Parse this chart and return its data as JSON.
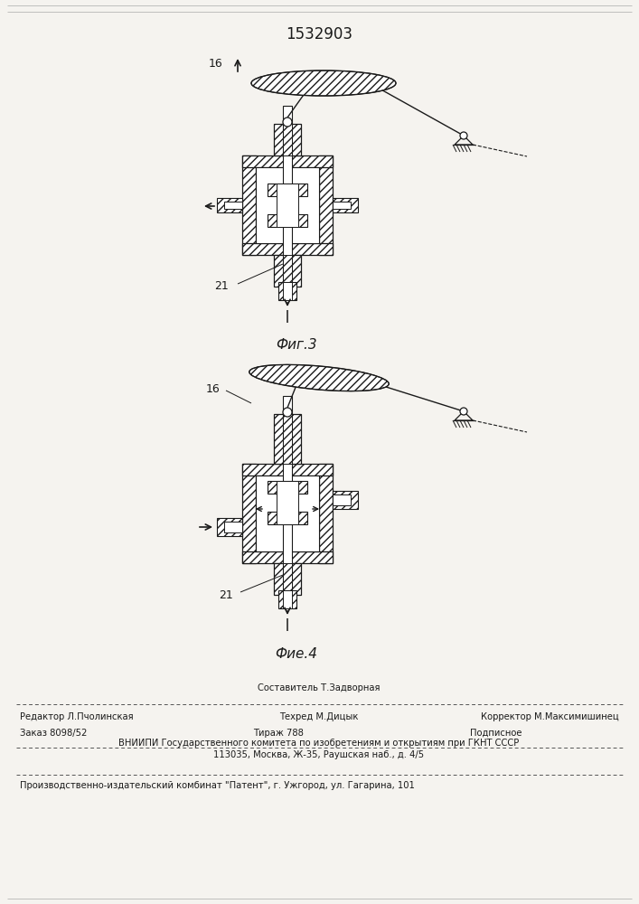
{
  "patent_number": "1532903",
  "background_color": "#f5f3ef",
  "fig3_label": "Фиг.3",
  "fig4_label": "Фие.4",
  "footer_line1_left": "Редактор Л.Пчолинская",
  "footer_line1_center_top": "Составитель Т.Задворная",
  "footer_line1_center": "Техред М.Дицык",
  "footer_line1_right": "Корректор М.Максимишинец",
  "footer_line2_left": "Заказ 8098/52",
  "footer_line2_center": "Тираж 788",
  "footer_line2_right": "Подписное",
  "footer_line3": "ВНИИПИ Государственного комитета по изобретениям и открытиям при ГКНТ СССР",
  "footer_line4": "113035, Москва, Ж-35, Раушская наб., д. 4/5",
  "footer_line5": "Производственно-издательский комбинат \"Патент\", г. Ужгород, ул. Гагарина, 101",
  "text_color": "#1a1a1a",
  "line_color": "#1a1a1a"
}
